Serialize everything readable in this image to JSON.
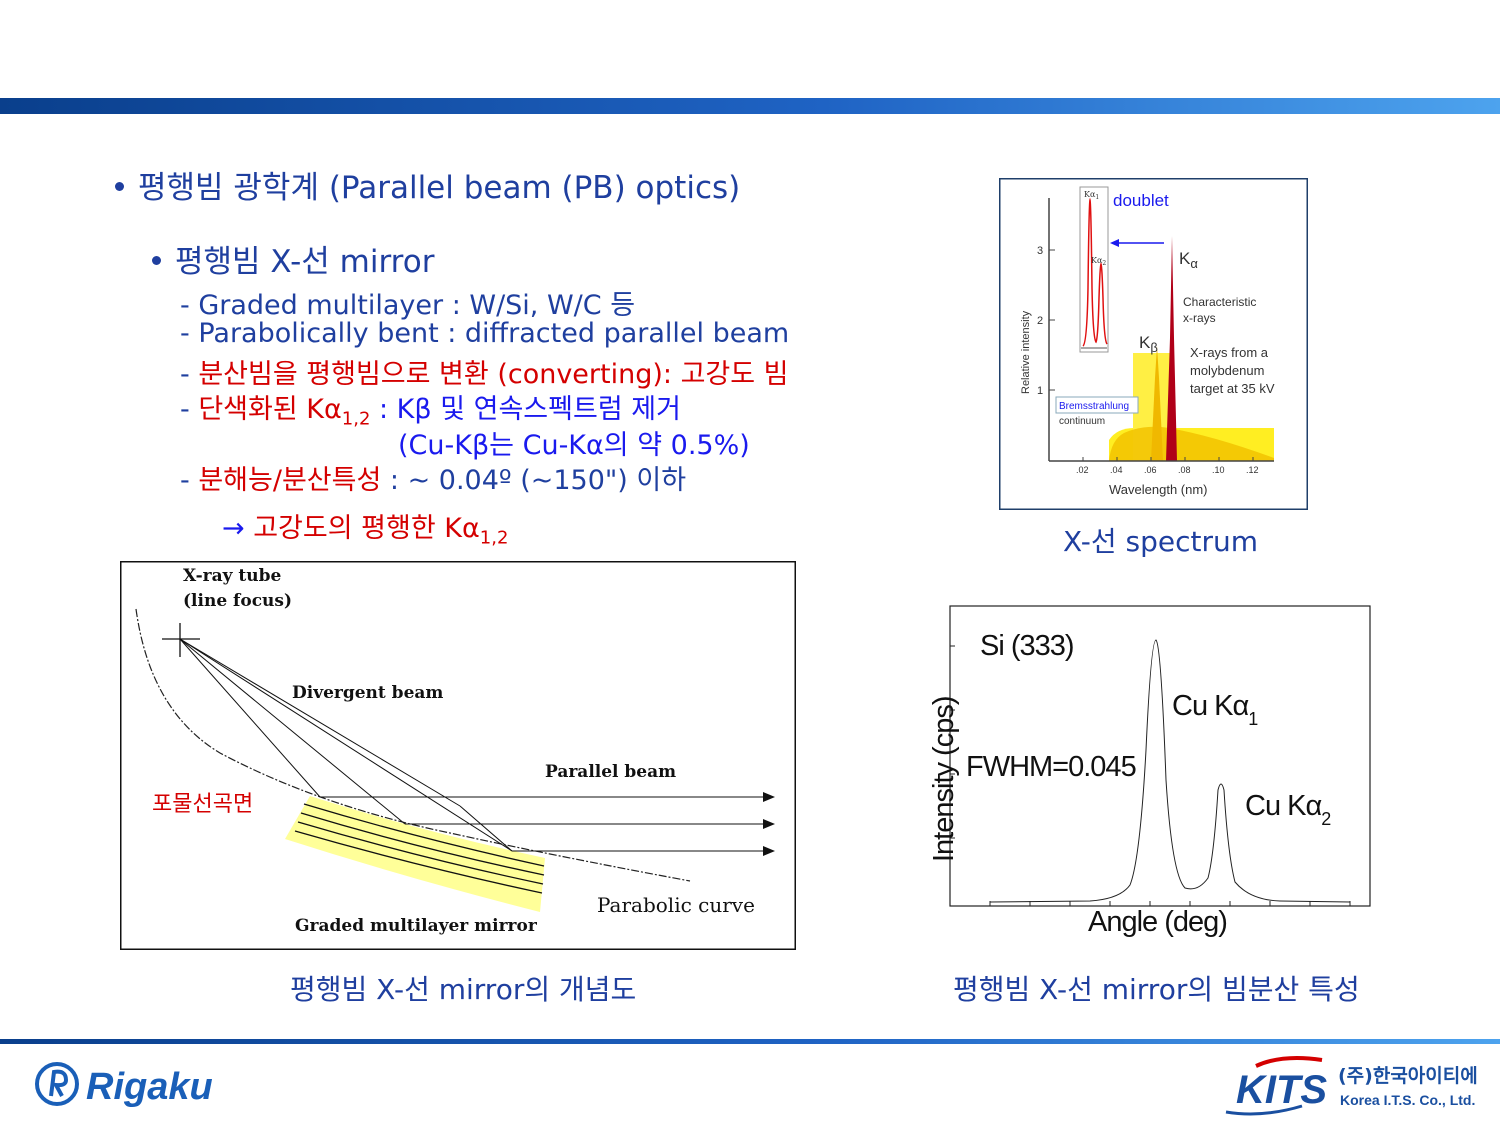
{
  "bullets": {
    "b1": "평행빔 광학계 (Parallel beam (PB) optics)",
    "b2": "평행빔 X-선 mirror"
  },
  "lines": {
    "l1": "- Graded multilayer : W/Si, W/C 등",
    "l2": "- Parabolically bent : diffracted parallel beam",
    "l3_dash": "- ",
    "l3": "분산빔을 평행빔으로 변환 (converting): 고강도 빔",
    "l4_dash": "- ",
    "l4_red": "단색화된 Kα",
    "l4_sub": "1,2",
    "l4_blue": " : Kβ 및 연속스펙트럼 제거",
    "l5": "(Cu-Kβ는 Cu-Kα의 약 0.5%)",
    "l6_dash": "- ",
    "l6_red": "분해능/분산특성",
    "l6_blue": " : ~ 0.04º (~150\") 이하",
    "l7_arrow": "→ ",
    "l7": "고강도의 평행한 Kα",
    "l7_sub": "1,2"
  },
  "spectrum": {
    "doublet": "doublet",
    "ka1": "Kα",
    "ka1_sub": "1",
    "ka2": "Kα",
    "ka2_sub": "2",
    "y_ticks": [
      "3",
      "2",
      "1"
    ],
    "ylabel": "Relative intensity",
    "x_ticks": [
      ".02",
      ".04",
      ".06",
      ".08",
      ".10",
      ".12"
    ],
    "xlabel": "Wavelength (nm)",
    "ka_peak": "K",
    "ka_peak_sym": "α",
    "kb_peak": "K",
    "kb_peak_sym": "β",
    "characteristic1": "Characteristic",
    "characteristic2": "x-rays",
    "target1": "X-rays from a",
    "target2": "molybdenum",
    "target3": "target at 35 kV",
    "brems1": "Bremsstrahlung",
    "brems2": "continuum",
    "caption": "X-선 spectrum"
  },
  "mirror": {
    "tube1": "X-ray tube",
    "tube2": "(line focus)",
    "divergent": "Divergent beam",
    "parallel": "Parallel beam",
    "parabola_kr": "포물선곡면",
    "parabolic_curve": "Parabolic curve",
    "graded": "Graded multilayer mirror",
    "caption": "평행빔 X-선 mirror의 개념도"
  },
  "rocking": {
    "si": "Si (333)",
    "cuka1": "Cu Kα",
    "cuka1_sub": "1",
    "fwhm": "FWHM=0.045",
    "cuka2": "Cu Kα",
    "cuka2_sub": "2",
    "ylabel": "Intensity (cps)",
    "xlabel": "Angle (deg)",
    "caption": "평행빔 X-선 mirror의 빔분산 특성"
  },
  "logos": {
    "rigaku": "Rigaku",
    "kits": "KITS",
    "kits_kr": "(주)한국아이티에스",
    "kits_en": "Korea I.T.S. Co., Ltd."
  },
  "colors": {
    "title_blue": "#1f3f9f",
    "highlight_red": "#d40000",
    "emphasis_blue": "#1a1aee",
    "mirror_yellow": "#ffff99",
    "rigaku_blue": "#1a5fb8"
  }
}
